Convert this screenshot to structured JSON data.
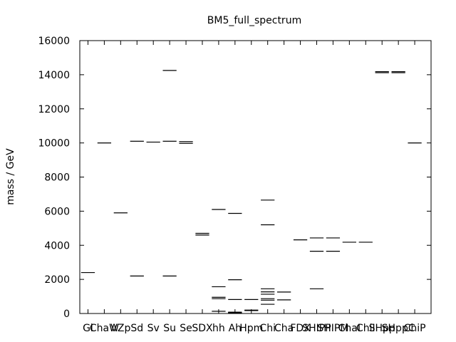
{
  "chart_data": {
    "type": "scatter",
    "title": "BM5_full_spectrum",
    "xlabel": "",
    "ylabel": "mass / GeV",
    "ylim": [
      0,
      16000
    ],
    "yticks": [
      0,
      2000,
      4000,
      6000,
      8000,
      10000,
      12000,
      14000,
      16000
    ],
    "grid": false,
    "legend": "none",
    "categories": [
      "Gl",
      "ChaW",
      "VZp",
      "Sd",
      "Sv",
      "Su",
      "Se",
      "SDX",
      "hh",
      "Ah",
      "Hpm",
      "Chi",
      "Cha",
      "FDX",
      "SHIPP",
      "SHIPM",
      "ChaI",
      "ChiI",
      "SHpp",
      "SHppC",
      "ChiP"
    ],
    "series": [
      {
        "values": [
          [
            2400
          ],
          [
            10000
          ],
          [
            5900
          ],
          [
            2200,
            10100
          ],
          [
            10050
          ],
          [
            2200,
            10100,
            14250
          ],
          [
            9980,
            10080
          ],
          [
            4600,
            4700
          ],
          [
            130,
            870,
            950,
            1570,
            6100
          ],
          [
            20,
            40,
            60,
            80,
            820,
            1980,
            5870
          ],
          [
            170,
            200,
            820
          ],
          [
            540,
            780,
            870,
            1130,
            1270,
            1450,
            5200,
            6650
          ],
          [
            800,
            1260
          ],
          [
            4320
          ],
          [
            1450,
            3650,
            4430
          ],
          [
            3650,
            4430
          ],
          [
            4180
          ],
          [
            4180
          ],
          [
            14120,
            14180
          ],
          [
            14120,
            14180
          ],
          [
            10000
          ]
        ]
      }
    ]
  }
}
